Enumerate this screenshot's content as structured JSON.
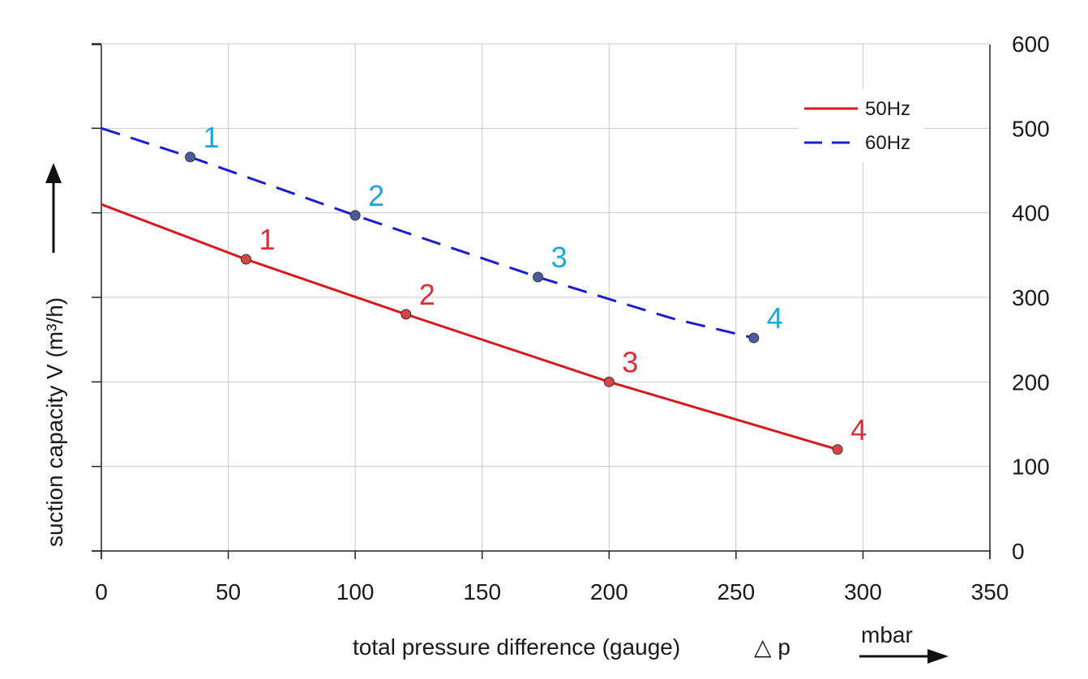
{
  "chart_data": {
    "type": "line",
    "title": "",
    "xlabel": "total pressure difference (gauge)",
    "xlabel_symbol": "△ p",
    "xunit": "mbar",
    "ylabel": "suction capacity V (m³/h)",
    "xlim": [
      0,
      350
    ],
    "ylim": [
      0,
      600
    ],
    "xticks": [
      "0",
      "50",
      "100",
      "150",
      "200",
      "250",
      "300",
      "350"
    ],
    "yticks": [
      "0",
      "100",
      "200",
      "300",
      "400",
      "500",
      "600"
    ],
    "grid": true,
    "legend_position": "top-right",
    "series": [
      {
        "name": "50Hz",
        "color": "#d71920",
        "point_label_color": "#d6313a",
        "marker_color": "#d64545",
        "dash": false,
        "line_x": [
          0,
          57,
          120,
          200,
          290
        ],
        "line_y": [
          410,
          345,
          280,
          200,
          120
        ],
        "points": [
          {
            "label": "1",
            "x": 57,
            "y": 345
          },
          {
            "label": "2",
            "x": 120,
            "y": 280
          },
          {
            "label": "3",
            "x": 200,
            "y": 200
          },
          {
            "label": "4",
            "x": 290,
            "y": 120
          }
        ]
      },
      {
        "name": "60Hz",
        "color": "#1a1fcc",
        "point_label_color": "#1ea6d9",
        "marker_color": "#4a5ba0",
        "dash": true,
        "line_x": [
          0,
          35,
          100,
          172,
          200,
          225,
          257
        ],
        "line_y": [
          500,
          466,
          397,
          324,
          298,
          275,
          252
        ],
        "points": [
          {
            "label": "1",
            "x": 35,
            "y": 466
          },
          {
            "label": "2",
            "x": 100,
            "y": 397
          },
          {
            "label": "3",
            "x": 172,
            "y": 324
          },
          {
            "label": "4",
            "x": 257,
            "y": 252
          }
        ]
      }
    ]
  }
}
